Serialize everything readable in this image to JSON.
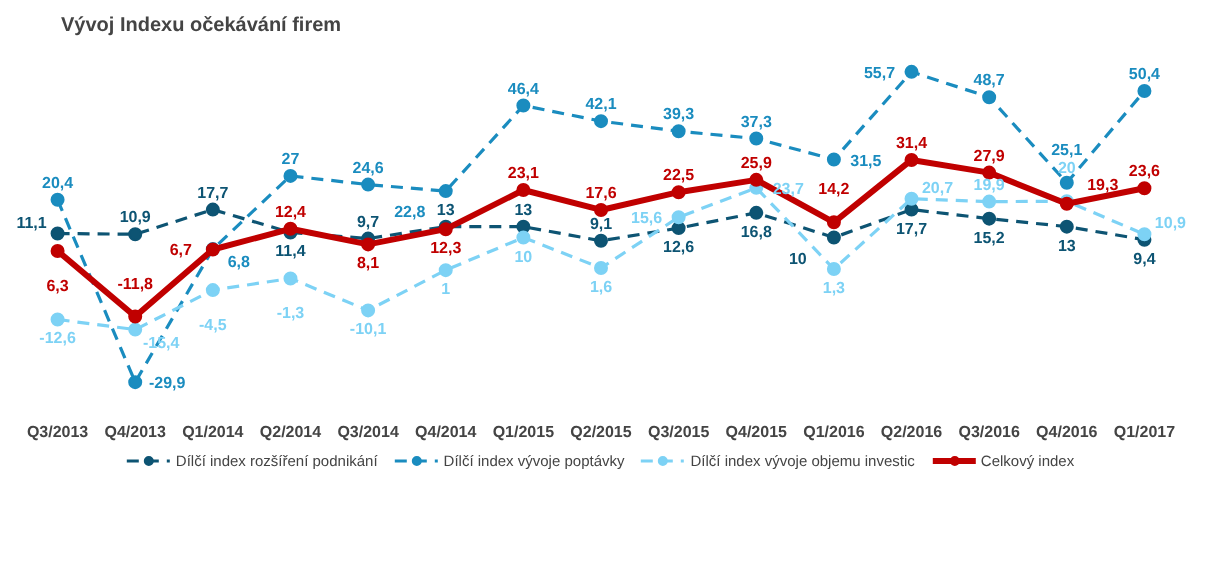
{
  "chart_data": {
    "type": "line",
    "title": "Vývoj Indexu očekávání firem",
    "categories": [
      "Q3/2013",
      "Q4/2013",
      "Q1/2014",
      "Q2/2014",
      "Q3/2014",
      "Q4/2014",
      "Q1/2015",
      "Q2/2015",
      "Q3/2015",
      "Q4/2015",
      "Q1/2016",
      "Q2/2016",
      "Q3/2016",
      "Q4/2016",
      "Q1/2017"
    ],
    "series": [
      {
        "name": "Dílčí index rozšíření podnikání",
        "color": "#0d5473",
        "line_style": "dashed",
        "values": [
          11.1,
          10.9,
          17.7,
          11.4,
          9.7,
          13,
          13,
          9.1,
          12.6,
          16.8,
          10,
          17.7,
          15.2,
          13,
          9.4
        ],
        "value_labels": [
          "11,1",
          "10,9",
          "17,7",
          "11,4",
          "9,7",
          "13",
          "13",
          "9,1",
          "12,6",
          "16,8",
          "10",
          "17,7",
          "15,2",
          "13",
          "9,4"
        ]
      },
      {
        "name": "Dílčí index vývoje poptávky",
        "color": "#1a8cbf",
        "line_style": "dashed",
        "values": [
          20.4,
          -29.9,
          6.8,
          27,
          24.6,
          22.8,
          46.4,
          42.1,
          39.3,
          37.3,
          31.5,
          55.7,
          48.7,
          25.1,
          50.4
        ],
        "value_labels": [
          "20,4",
          "-29,9",
          "6,8",
          "27",
          "24,6",
          "22,8",
          "46,4",
          "42,1",
          "39,3",
          "37,3",
          "31,5",
          "55,7",
          "48,7",
          "25,1",
          "50,4"
        ]
      },
      {
        "name": "Dílčí index vývoje objemu investic",
        "color": "#7dd2f5",
        "line_style": "dashed",
        "values": [
          -12.6,
          -15.4,
          -4.5,
          -1.3,
          -10.1,
          1,
          10,
          1.6,
          15.6,
          23.7,
          1.3,
          20.7,
          19.9,
          20,
          10.9
        ],
        "value_labels": [
          "-12,6",
          "-15,4",
          "-4,5",
          "-1,3",
          "-10,1",
          "1",
          "10",
          "1,6",
          "15,6",
          "23,7",
          "1,3",
          "20,7",
          "19,9",
          "20",
          "10,9"
        ]
      },
      {
        "name": "Celkový index",
        "color": "#c00000",
        "line_style": "solid",
        "values": [
          6.3,
          -11.8,
          6.7,
          12.4,
          8.1,
          12.3,
          23.1,
          17.6,
          22.5,
          25.9,
          14.2,
          31.4,
          27.9,
          19.3,
          23.6
        ],
        "value_labels": [
          "6,3",
          "-11,8",
          "6,7",
          "12,4",
          "8,1",
          "12,3",
          "23,1",
          "17,6",
          "22,5",
          "25,9",
          "14,2",
          "31,4",
          "27,9",
          "19,3",
          "23,6"
        ]
      }
    ],
    "marker": "circle",
    "legend": "bottom"
  }
}
